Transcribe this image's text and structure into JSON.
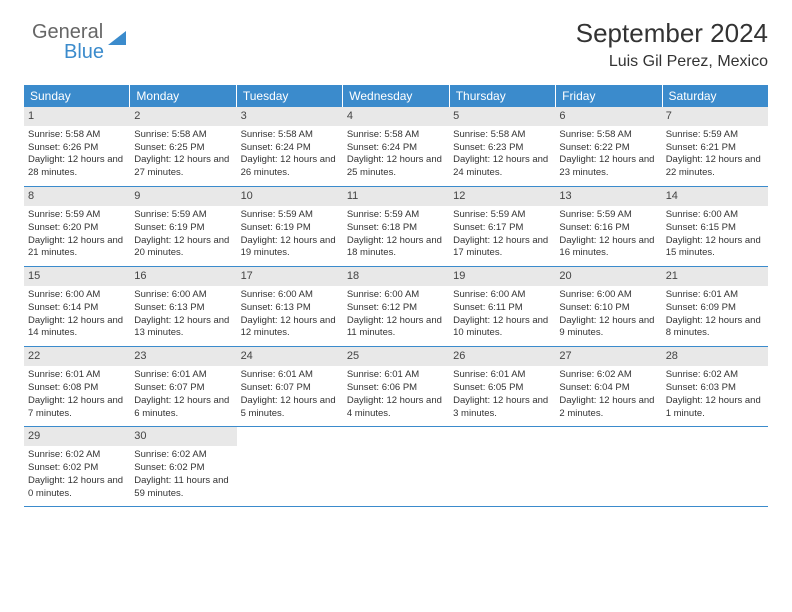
{
  "logo": {
    "left": "General",
    "right": "Blue"
  },
  "header": {
    "title": "September 2024",
    "location": "Luis Gil Perez, Mexico"
  },
  "dayNames": [
    "Sunday",
    "Monday",
    "Tuesday",
    "Wednesday",
    "Thursday",
    "Friday",
    "Saturday"
  ],
  "colors": {
    "accent": "#3b8bcc",
    "daynum_bg": "#e8e8e8",
    "text": "#333333"
  },
  "days": [
    {
      "n": 1,
      "sr": "5:58 AM",
      "ss": "6:26 PM",
      "dl": "12 hours and 28 minutes."
    },
    {
      "n": 2,
      "sr": "5:58 AM",
      "ss": "6:25 PM",
      "dl": "12 hours and 27 minutes."
    },
    {
      "n": 3,
      "sr": "5:58 AM",
      "ss": "6:24 PM",
      "dl": "12 hours and 26 minutes."
    },
    {
      "n": 4,
      "sr": "5:58 AM",
      "ss": "6:24 PM",
      "dl": "12 hours and 25 minutes."
    },
    {
      "n": 5,
      "sr": "5:58 AM",
      "ss": "6:23 PM",
      "dl": "12 hours and 24 minutes."
    },
    {
      "n": 6,
      "sr": "5:58 AM",
      "ss": "6:22 PM",
      "dl": "12 hours and 23 minutes."
    },
    {
      "n": 7,
      "sr": "5:59 AM",
      "ss": "6:21 PM",
      "dl": "12 hours and 22 minutes."
    },
    {
      "n": 8,
      "sr": "5:59 AM",
      "ss": "6:20 PM",
      "dl": "12 hours and 21 minutes."
    },
    {
      "n": 9,
      "sr": "5:59 AM",
      "ss": "6:19 PM",
      "dl": "12 hours and 20 minutes."
    },
    {
      "n": 10,
      "sr": "5:59 AM",
      "ss": "6:19 PM",
      "dl": "12 hours and 19 minutes."
    },
    {
      "n": 11,
      "sr": "5:59 AM",
      "ss": "6:18 PM",
      "dl": "12 hours and 18 minutes."
    },
    {
      "n": 12,
      "sr": "5:59 AM",
      "ss": "6:17 PM",
      "dl": "12 hours and 17 minutes."
    },
    {
      "n": 13,
      "sr": "5:59 AM",
      "ss": "6:16 PM",
      "dl": "12 hours and 16 minutes."
    },
    {
      "n": 14,
      "sr": "6:00 AM",
      "ss": "6:15 PM",
      "dl": "12 hours and 15 minutes."
    },
    {
      "n": 15,
      "sr": "6:00 AM",
      "ss": "6:14 PM",
      "dl": "12 hours and 14 minutes."
    },
    {
      "n": 16,
      "sr": "6:00 AM",
      "ss": "6:13 PM",
      "dl": "12 hours and 13 minutes."
    },
    {
      "n": 17,
      "sr": "6:00 AM",
      "ss": "6:13 PM",
      "dl": "12 hours and 12 minutes."
    },
    {
      "n": 18,
      "sr": "6:00 AM",
      "ss": "6:12 PM",
      "dl": "12 hours and 11 minutes."
    },
    {
      "n": 19,
      "sr": "6:00 AM",
      "ss": "6:11 PM",
      "dl": "12 hours and 10 minutes."
    },
    {
      "n": 20,
      "sr": "6:00 AM",
      "ss": "6:10 PM",
      "dl": "12 hours and 9 minutes."
    },
    {
      "n": 21,
      "sr": "6:01 AM",
      "ss": "6:09 PM",
      "dl": "12 hours and 8 minutes."
    },
    {
      "n": 22,
      "sr": "6:01 AM",
      "ss": "6:08 PM",
      "dl": "12 hours and 7 minutes."
    },
    {
      "n": 23,
      "sr": "6:01 AM",
      "ss": "6:07 PM",
      "dl": "12 hours and 6 minutes."
    },
    {
      "n": 24,
      "sr": "6:01 AM",
      "ss": "6:07 PM",
      "dl": "12 hours and 5 minutes."
    },
    {
      "n": 25,
      "sr": "6:01 AM",
      "ss": "6:06 PM",
      "dl": "12 hours and 4 minutes."
    },
    {
      "n": 26,
      "sr": "6:01 AM",
      "ss": "6:05 PM",
      "dl": "12 hours and 3 minutes."
    },
    {
      "n": 27,
      "sr": "6:02 AM",
      "ss": "6:04 PM",
      "dl": "12 hours and 2 minutes."
    },
    {
      "n": 28,
      "sr": "6:02 AM",
      "ss": "6:03 PM",
      "dl": "12 hours and 1 minute."
    },
    {
      "n": 29,
      "sr": "6:02 AM",
      "ss": "6:02 PM",
      "dl": "12 hours and 0 minutes."
    },
    {
      "n": 30,
      "sr": "6:02 AM",
      "ss": "6:02 PM",
      "dl": "11 hours and 59 minutes."
    }
  ],
  "labels": {
    "sunrise": "Sunrise:",
    "sunset": "Sunset:",
    "daylight": "Daylight:"
  }
}
